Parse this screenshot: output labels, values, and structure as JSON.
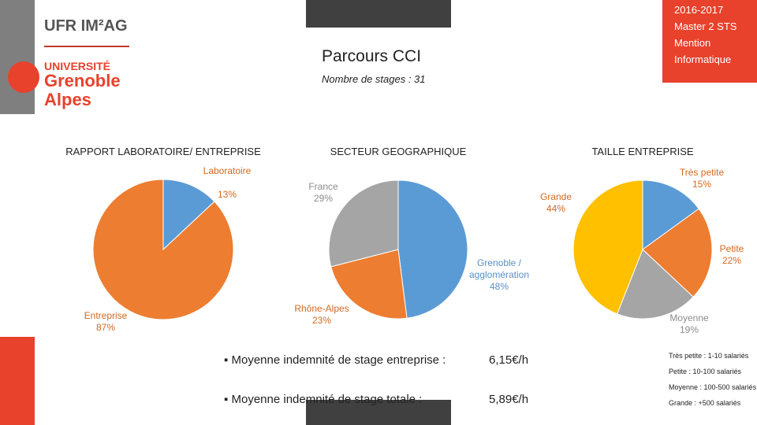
{
  "header": {
    "logo_ufr": "UFR IM²AG",
    "logo_univ": "UNIVERSITÉ",
    "logo_city": "Grenoble",
    "logo_region": "Alpes",
    "title": "Parcours CCI",
    "subtitle": "Nombre de stages : 31",
    "info": [
      "2016-2017",
      "Master 2 STS",
      "Mention",
      "Informatique"
    ]
  },
  "chart_data": [
    {
      "type": "pie",
      "title": "RAPPORT LABORATOIRE/ ENTREPRISE",
      "categories": [
        "Laboratoire",
        "Entreprise"
      ],
      "values": [
        13,
        87
      ],
      "value_labels": [
        "13%",
        "87%"
      ],
      "colors": [
        "#5b9bd5",
        "#ed7d31"
      ]
    },
    {
      "type": "pie",
      "title": "SECTEUR GEOGRAPHIQUE",
      "categories": [
        "Grenoble / agglomération",
        "Rhône-Alpes",
        "France"
      ],
      "values": [
        48,
        23,
        29
      ],
      "value_labels": [
        "48%",
        "23%",
        "29%"
      ],
      "colors": [
        "#5b9bd5",
        "#ed7d31",
        "#a5a5a5"
      ]
    },
    {
      "type": "pie",
      "title": "TAILLE ENTREPRISE",
      "categories": [
        "Très petite",
        "Petite",
        "Moyenne",
        "Grande"
      ],
      "values": [
        15,
        22,
        19,
        44
      ],
      "value_labels": [
        "15%",
        "22%",
        "19%",
        "44%"
      ],
      "colors": [
        "#5b9bd5",
        "#ed7d31",
        "#a5a5a5",
        "#ffc000"
      ]
    }
  ],
  "stats": [
    {
      "label": "Moyenne indemnité de stage entreprise :",
      "value": "6,15€/h"
    },
    {
      "label": "Moyenne indemnité de stage totale :",
      "value": "5,89€/h"
    }
  ],
  "size_legend": [
    "Très petite : 1-10 salariés",
    "Petite : 10-100 salariés",
    "Moyenne : 100-500 salariés",
    "Grande : +500 salariés"
  ]
}
